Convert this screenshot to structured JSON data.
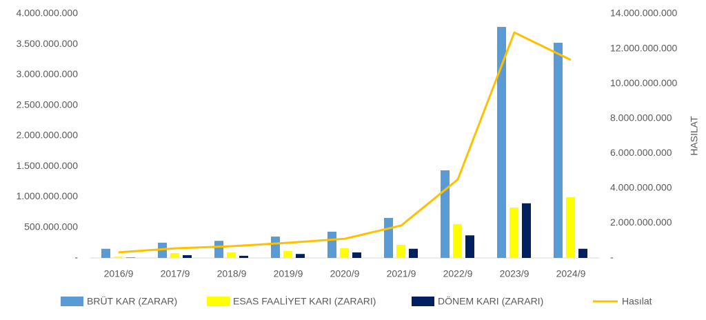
{
  "chart_data": {
    "type": "bar_line",
    "categories": [
      "2016/9",
      "2017/9",
      "2018/9",
      "2019/9",
      "2020/9",
      "2021/9",
      "2022/9",
      "2023/9",
      "2024/9"
    ],
    "series": [
      {
        "name": "BRÜT KAR (ZARAR)",
        "color": "#5b9bd5",
        "type": "bar",
        "values": [
          150000000,
          250000000,
          280000000,
          350000000,
          430000000,
          655000000,
          1435000000,
          3785000000,
          3525000000
        ]
      },
      {
        "name": "ESAS FAALİYET KARI (ZARARI)",
        "color": "#ffff00",
        "type": "bar",
        "values": [
          20000000,
          80000000,
          90000000,
          115000000,
          160000000,
          215000000,
          555000000,
          825000000,
          995000000
        ]
      },
      {
        "name": "DÖNEM KARI (ZARARI)",
        "color": "#002060",
        "type": "bar",
        "values": [
          5000000,
          45000000,
          35000000,
          65000000,
          90000000,
          150000000,
          370000000,
          895000000,
          150000000
        ]
      },
      {
        "name": "Hasılat",
        "color": "#ffc000",
        "type": "line",
        "axis": "y2",
        "values": [
          320000000,
          550000000,
          670000000,
          870000000,
          1100000000,
          1860000000,
          4500000000,
          12930000000,
          11350000000
        ]
      }
    ],
    "ylim": [
      0,
      4000000000
    ],
    "yticks": [
      {
        "value": 0,
        "label": "-"
      },
      {
        "value": 500000000,
        "label": "500.000.000"
      },
      {
        "value": 1000000000,
        "label": "1.000.000.000"
      },
      {
        "value": 1500000000,
        "label": "1.500.000.000"
      },
      {
        "value": 2000000000,
        "label": "2.000.000.000"
      },
      {
        "value": 2500000000,
        "label": "2.500.000.000"
      },
      {
        "value": 3000000000,
        "label": "3.000.000.000"
      },
      {
        "value": 3500000000,
        "label": "3.500.000.000"
      },
      {
        "value": 4000000000,
        "label": "4.000.000.000"
      }
    ],
    "y2lim": [
      0,
      14000000000
    ],
    "y2ticks": [
      {
        "value": 0,
        "label": "-"
      },
      {
        "value": 2000000000,
        "label": "2.000.000.000"
      },
      {
        "value": 4000000000,
        "label": "4.000.000.000"
      },
      {
        "value": 6000000000,
        "label": "6.000.000.000"
      },
      {
        "value": 8000000000,
        "label": "8.000.000.000"
      },
      {
        "value": 10000000000,
        "label": "10.000.000.000"
      },
      {
        "value": 12000000000,
        "label": "12.000.000.000"
      },
      {
        "value": 14000000000,
        "label": "14.000.000.000"
      }
    ],
    "y2label": "HASILAT",
    "grid": false
  }
}
